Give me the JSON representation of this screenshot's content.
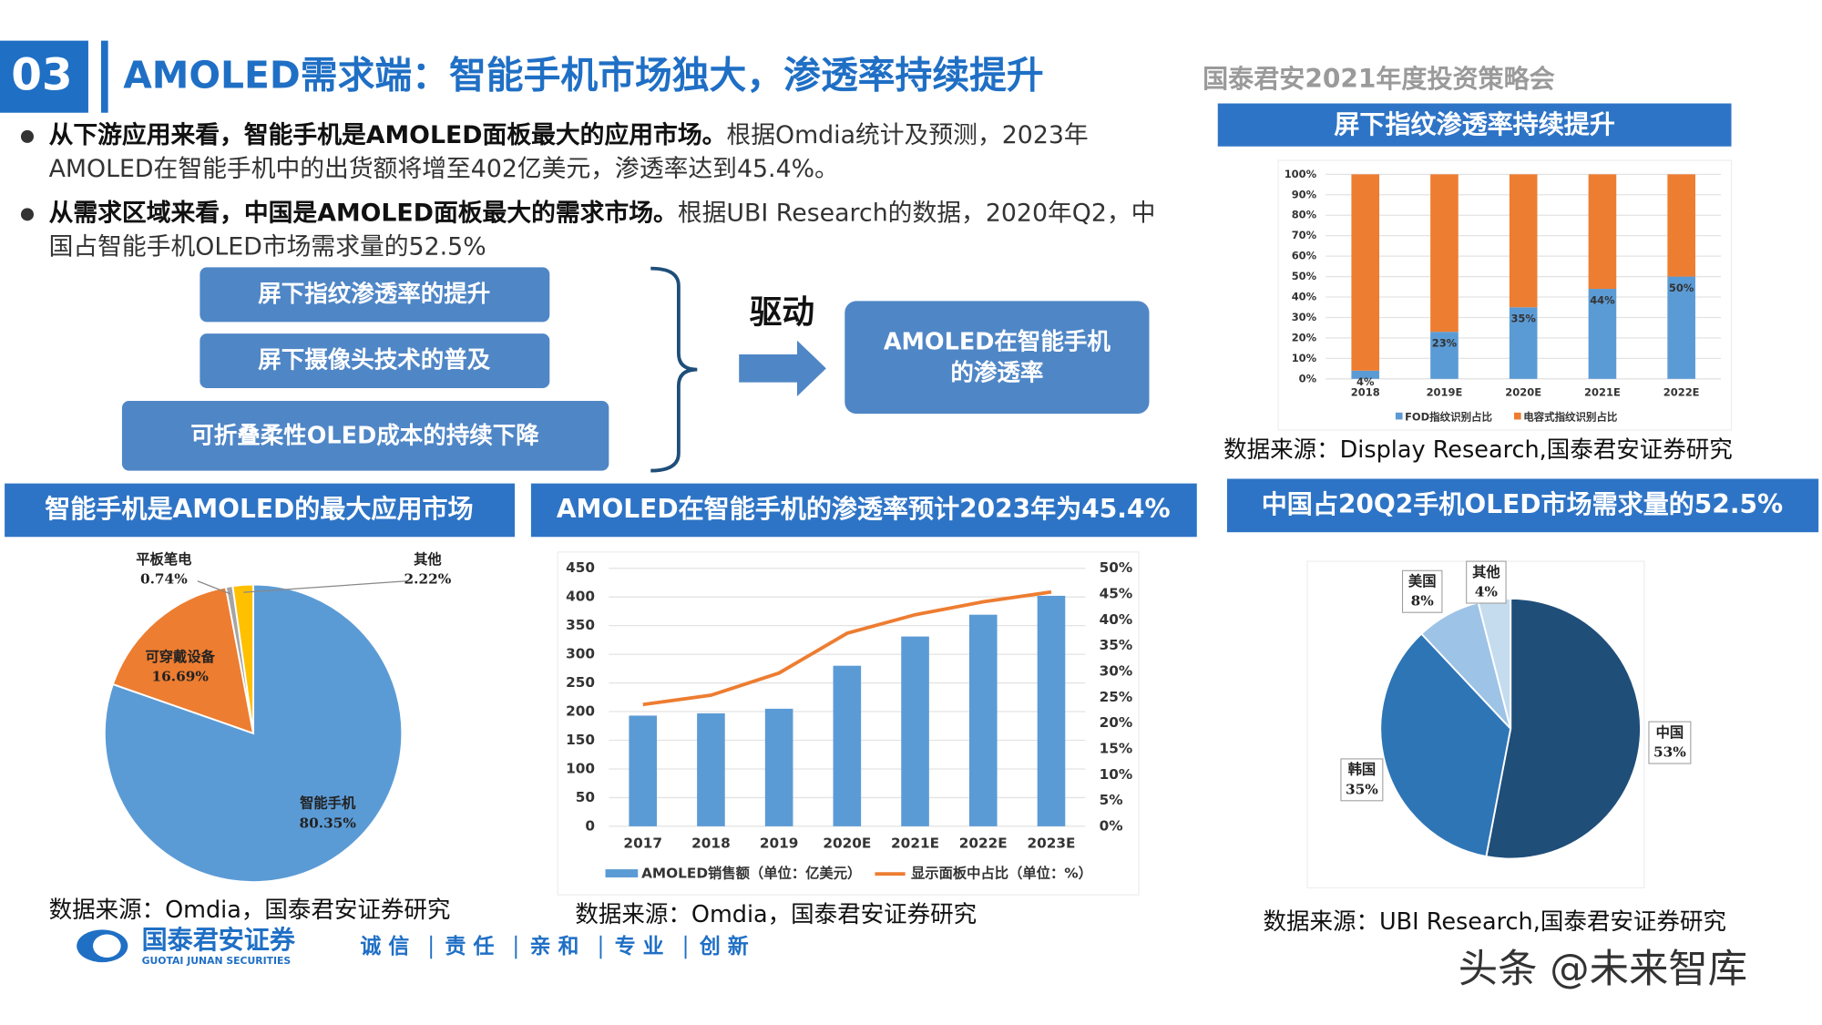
{
  "header": {
    "number": "03",
    "title": "AMOLED需求端：智能手机市场独大，渗透率持续提升",
    "org": "国泰君安2021年度投资策略会"
  },
  "bullets": [
    {
      "bold": "从下游应用来看，智能手机是AMOLED面板最大的应用市场。",
      "text": "根据Omdia统计及预测，2023年AMOLED在智能手机中的出货额将增至402亿美元，渗透率达到45.4%。"
    },
    {
      "bold": "从需求区域来看，中国是AMOLED面板最大的需求市场。",
      "text": "根据UBI Research的数据，2020年Q2，中国占智能手机OLED市场需求量的52.5%"
    }
  ],
  "diagram": {
    "drivers": [
      "屏下指纹渗透率的提升",
      "屏下摄像头技术的普及",
      "可折叠柔性OLED成本的持续下降"
    ],
    "arrow_label": "驱动",
    "result": [
      "AMOLED在智能手机",
      "的渗透率"
    ]
  },
  "chart_data": [
    {
      "type": "bar",
      "stacked": true,
      "title": "屏下指纹渗透率持续提升",
      "categories": [
        "2018",
        "2019E",
        "2020E",
        "2021E",
        "2022E"
      ],
      "series": [
        {
          "name": "FOD指纹识别占比",
          "color": "#5b9bd5",
          "values": [
            4,
            23,
            35,
            44,
            50
          ],
          "value_labels": [
            "4%",
            "23%",
            "35%",
            "44%",
            "50%"
          ]
        },
        {
          "name": "电容式指纹识别占比",
          "color": "#ed7d31",
          "values": [
            96,
            77,
            65,
            56,
            50
          ]
        }
      ],
      "ylim": [
        0,
        100
      ],
      "yticks": [
        {
          "value": 0,
          "label": "0%"
        },
        {
          "value": 10,
          "label": "10%"
        },
        {
          "value": 20,
          "label": "20%"
        },
        {
          "value": 30,
          "label": "30%"
        },
        {
          "value": 40,
          "label": "40%"
        },
        {
          "value": 50,
          "label": "50%"
        },
        {
          "value": 60,
          "label": "60%"
        },
        {
          "value": 70,
          "label": "70%"
        },
        {
          "value": 80,
          "label": "80%"
        },
        {
          "value": 90,
          "label": "90%"
        },
        {
          "value": 100,
          "label": "100%"
        }
      ],
      "grid": true,
      "legend": "bottom",
      "source": "数据来源：Display Research,国泰君安证券研究"
    },
    {
      "type": "pie",
      "title": "智能手机是AMOLED的最大应用市场",
      "categories": [
        "智能手机",
        "可穿戴设备",
        "平板笔电",
        "其他"
      ],
      "values": [
        80.35,
        16.69,
        0.74,
        2.22
      ],
      "value_labels": [
        "80.35%",
        "16.69%",
        "0.74%",
        "2.22%"
      ],
      "colors": [
        "#5b9bd5",
        "#ed7d31",
        "#a5a5a5",
        "#ffc000"
      ],
      "source": "数据来源：Omdia，国泰君安证券研究"
    },
    {
      "type": "combo",
      "title": "AMOLED在智能手机的渗透率预计2023年为45.4%",
      "categories": [
        "2017",
        "2018",
        "2019",
        "2020E",
        "2021E",
        "2022E",
        "2023E"
      ],
      "series": [
        {
          "name": "AMOLED销售额（单位：亿美元）",
          "type": "bar",
          "color": "#5b9bd5",
          "values": [
            193,
            197,
            205,
            280,
            331,
            369,
            402
          ]
        },
        {
          "name": "显示面板中占比（单位：%）",
          "type": "line",
          "axis": "y2",
          "color": "#ed7d31",
          "values": [
            23.6,
            25.4,
            29.7,
            37.4,
            41,
            43.5,
            45.4
          ]
        }
      ],
      "ylim": [
        0,
        450
      ],
      "yticks": [
        0,
        50,
        100,
        150,
        200,
        250,
        300,
        350,
        400,
        450
      ],
      "y2lim": [
        0,
        50
      ],
      "y2ticks": [
        {
          "value": 0,
          "label": "0%"
        },
        {
          "value": 5,
          "label": "5%"
        },
        {
          "value": 10,
          "label": "10%"
        },
        {
          "value": 15,
          "label": "15%"
        },
        {
          "value": 20,
          "label": "20%"
        },
        {
          "value": 25,
          "label": "25%"
        },
        {
          "value": 30,
          "label": "30%"
        },
        {
          "value": 35,
          "label": "35%"
        },
        {
          "value": 40,
          "label": "40%"
        },
        {
          "value": 45,
          "label": "45%"
        },
        {
          "value": 50,
          "label": "50%"
        }
      ],
      "grid": true,
      "legend": "bottom",
      "source": "数据来源：Omdia，国泰君安证券研究"
    },
    {
      "type": "pie",
      "title": "中国占20Q2手机OLED市场需求量的52.5%",
      "categories": [
        "中国",
        "韩国",
        "美国",
        "其他"
      ],
      "values": [
        53,
        35,
        8,
        4
      ],
      "value_labels": [
        "53%",
        "35%",
        "8%",
        "4%"
      ],
      "colors": [
        "#1f4e79",
        "#2e75b6",
        "#9dc3e6",
        "#c5dcef"
      ],
      "source": "数据来源：UBI Research,国泰君安证券研究"
    }
  ],
  "footer": {
    "company": "国泰君安证券",
    "company_en": "GUOTAI JUNAN SECURITIES",
    "values": [
      "诚 信",
      "责 任",
      "亲 和",
      "专 业",
      "创 新"
    ],
    "watermark": "头条 @未来智库"
  }
}
